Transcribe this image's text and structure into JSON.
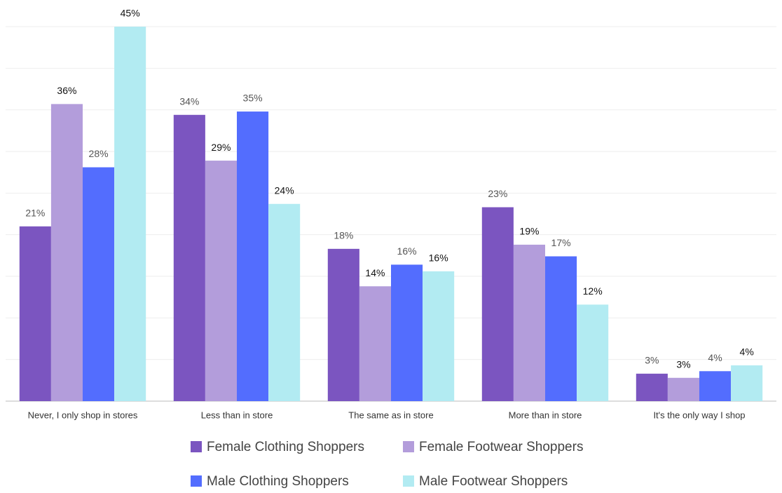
{
  "chart_data": {
    "type": "bar",
    "categories": [
      "Never, I only shop in stores",
      "Less than  in store",
      "The same as in store",
      "More than in store",
      "It's the only way I shop"
    ],
    "series": [
      {
        "name": "Female Clothing Shoppers",
        "color": "#7b55c0",
        "values": [
          21,
          34.4,
          18.3,
          23.3,
          3.3
        ],
        "value_labels": [
          "21%",
          "34%",
          "18%",
          "23%",
          "3%"
        ]
      },
      {
        "name": "Female Footwear Shoppers",
        "color": "#b39ddb",
        "values": [
          35.7,
          28.9,
          13.8,
          18.8,
          2.8
        ],
        "value_labels": [
          "36%",
          "29%",
          "14%",
          "19%",
          "3%"
        ]
      },
      {
        "name": "Male Clothing Shoppers",
        "color": "#536dfe",
        "values": [
          28.1,
          34.8,
          16.4,
          17.4,
          3.6
        ],
        "value_labels": [
          "28%",
          "35%",
          "16%",
          "17%",
          "4%"
        ]
      },
      {
        "name": "Male Footwear Shoppers",
        "color": "#b2ebf2",
        "values": [
          45,
          23.7,
          15.6,
          11.6,
          4.3
        ],
        "value_labels": [
          "45%",
          "24%",
          "16%",
          "12%",
          "4%"
        ]
      }
    ],
    "ylim": [
      0,
      45
    ],
    "yticks": [
      0,
      5,
      10,
      15,
      20,
      25,
      30,
      35,
      40,
      45
    ],
    "grid": true
  }
}
